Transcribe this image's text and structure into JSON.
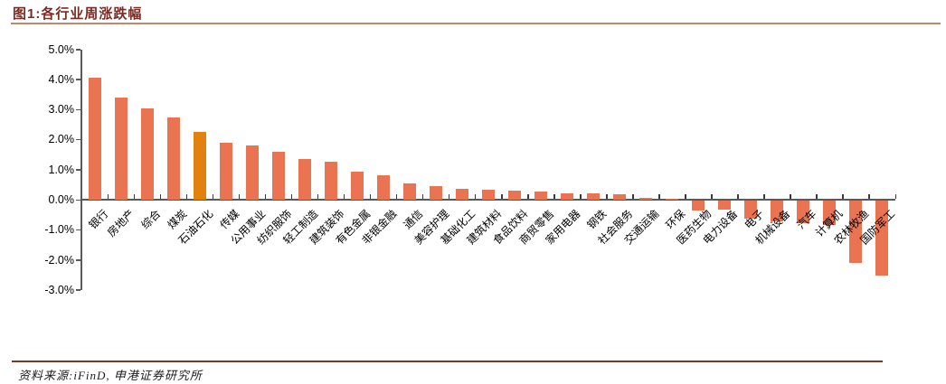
{
  "header": {
    "title": "图1:各行业周涨跌幅"
  },
  "footer": {
    "source_text": "资料来源:iFinD, 申港证券研究所"
  },
  "colors": {
    "title_text": "#7A2B23",
    "title_rule": "#C4876A",
    "footer_rule": "#7A3A22",
    "bar": "#EA7351",
    "bar_highlight": "#E2820E",
    "axis": "#595959"
  },
  "chart_data": {
    "type": "bar",
    "title": "图1:各行业周涨跌幅",
    "xlabel": "",
    "ylabel": "",
    "ylim": [
      -3.0,
      5.0
    ],
    "ytick_labels": [
      "5.0%",
      "4.0%",
      "3.0%",
      "2.0%",
      "1.0%",
      "0.0%",
      "-1.0%",
      "-2.0%",
      "-3.0%"
    ],
    "ytick_values": [
      5.0,
      4.0,
      3.0,
      2.0,
      1.0,
      0.0,
      -1.0,
      -2.0,
      -3.0
    ],
    "grid": false,
    "legend": null,
    "highlight_index": 4,
    "categories": [
      "银行",
      "房地产",
      "综合",
      "煤炭",
      "石油石化",
      "传媒",
      "公用事业",
      "纺织服饰",
      "轻工制造",
      "建筑装饰",
      "有色金属",
      "非银金融",
      "通信",
      "美容护理",
      "基础化工",
      "建筑材料",
      "食品饮料",
      "商贸零售",
      "家用电器",
      "钢铁",
      "社会服务",
      "交通运输",
      "环保",
      "医药生物",
      "电力设备",
      "电子",
      "机械设备",
      "汽车",
      "计算机",
      "农林牧渔",
      "国防军工"
    ],
    "values": [
      4.05,
      3.4,
      3.02,
      2.72,
      2.26,
      1.9,
      1.79,
      1.58,
      1.36,
      1.26,
      0.93,
      0.81,
      0.55,
      0.45,
      0.36,
      0.32,
      0.3,
      0.28,
      0.22,
      0.2,
      0.17,
      0.05,
      0.04,
      -0.35,
      -0.32,
      -0.62,
      -0.7,
      -0.76,
      -0.83,
      -2.1,
      -2.5
    ],
    "unit": "%"
  }
}
